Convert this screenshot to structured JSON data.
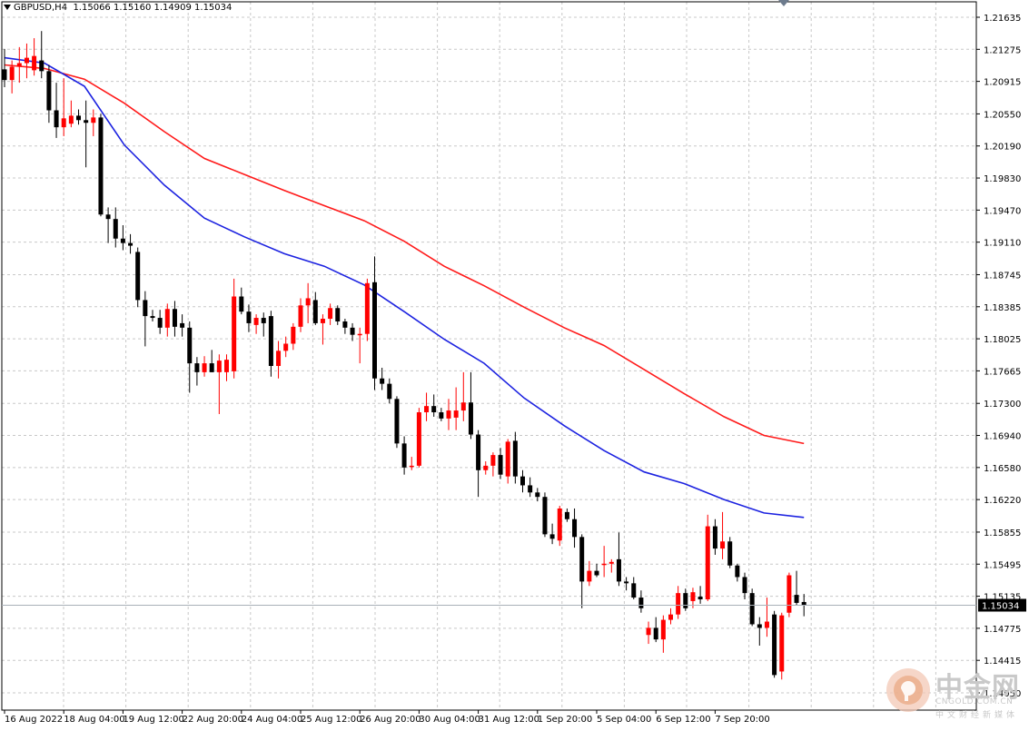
{
  "header": {
    "symbol": "GBPUSD,H4",
    "ohlc": "1.15066 1.15160 1.14909 1.15034"
  },
  "watermark": {
    "brand_cn": "中金网",
    "domain": "CNGOLD.COM.CN",
    "subtitle": "中文财经新媒体"
  },
  "colors": {
    "bull": "#ff0000",
    "bear": "#000000",
    "ma_red": "#ff1a1a",
    "ma_blue": "#1c22e0",
    "grid": "#c8c8c8",
    "axis": "#000000",
    "current_price_bg": "#000000",
    "current_price_text": "#ffffff"
  },
  "chart_data": {
    "type": "candlestick",
    "title": "GBPUSD,H4",
    "ylim": [
      1.1405,
      1.217
    ],
    "y_ticks": [
      "1.21635",
      "1.21275",
      "1.20915",
      "1.20550",
      "1.20190",
      "1.19830",
      "1.19470",
      "1.19110",
      "1.18745",
      "1.18385",
      "1.18025",
      "1.17665",
      "1.17300",
      "1.16940",
      "1.16580",
      "1.16220",
      "1.15855",
      "1.15495",
      "1.15135",
      "1.14775",
      "1.14415",
      "1.14050"
    ],
    "current_price": "1.15034",
    "x_labels": [
      "16 Aug 2022",
      "18 Aug 04:00",
      "19 Aug 12:00",
      "22 Aug 20:00",
      "24 Aug 04:00",
      "25 Aug 12:00",
      "26 Aug 20:00",
      "30 Aug 04:00",
      "31 Aug 12:00",
      "1 Sep 20:00",
      "5 Sep 04:00",
      "6 Sep 12:00",
      "7 Sep 20:00"
    ],
    "x_label_index": [
      0,
      8,
      16,
      24,
      32,
      40,
      48,
      56,
      64,
      72,
      80,
      88,
      96
    ],
    "candles": [
      {
        "o": 1.2105,
        "h": 1.2128,
        "l": 1.2085,
        "c": 1.2093
      },
      {
        "o": 1.2093,
        "h": 1.2115,
        "l": 1.2078,
        "c": 1.2108
      },
      {
        "o": 1.2108,
        "h": 1.213,
        "l": 1.209,
        "c": 1.2112
      },
      {
        "o": 1.2112,
        "h": 1.2134,
        "l": 1.2095,
        "c": 1.2118
      },
      {
        "o": 1.2104,
        "h": 1.214,
        "l": 1.2098,
        "c": 1.212
      },
      {
        "o": 1.2115,
        "h": 1.2148,
        "l": 1.2095,
        "c": 1.2103
      },
      {
        "o": 1.2103,
        "h": 1.211,
        "l": 1.2045,
        "c": 1.2059
      },
      {
        "o": 1.2059,
        "h": 1.209,
        "l": 1.2028,
        "c": 1.204
      },
      {
        "o": 1.204,
        "h": 1.2095,
        "l": 1.203,
        "c": 1.205
      },
      {
        "o": 1.2044,
        "h": 1.207,
        "l": 1.204,
        "c": 1.2053
      },
      {
        "o": 1.2053,
        "h": 1.206,
        "l": 1.2043,
        "c": 1.2048
      },
      {
        "o": 1.2048,
        "h": 1.207,
        "l": 1.1995,
        "c": 1.2045
      },
      {
        "o": 1.2045,
        "h": 1.206,
        "l": 1.203,
        "c": 1.2051
      },
      {
        "o": 1.2051,
        "h": 1.2055,
        "l": 1.194,
        "c": 1.1942
      },
      {
        "o": 1.1942,
        "h": 1.195,
        "l": 1.191,
        "c": 1.1937
      },
      {
        "o": 1.1937,
        "h": 1.195,
        "l": 1.1905,
        "c": 1.1915
      },
      {
        "o": 1.1915,
        "h": 1.193,
        "l": 1.1902,
        "c": 1.191
      },
      {
        "o": 1.191,
        "h": 1.192,
        "l": 1.1898,
        "c": 1.1907
      },
      {
        "o": 1.19,
        "h": 1.1905,
        "l": 1.1838,
        "c": 1.1846
      },
      {
        "o": 1.1846,
        "h": 1.1856,
        "l": 1.1794,
        "c": 1.1828
      },
      {
        "o": 1.1828,
        "h": 1.1835,
        "l": 1.1822,
        "c": 1.1826
      },
      {
        "o": 1.1826,
        "h": 1.1835,
        "l": 1.1808,
        "c": 1.1815
      },
      {
        "o": 1.1815,
        "h": 1.1842,
        "l": 1.1805,
        "c": 1.1836
      },
      {
        "o": 1.1836,
        "h": 1.1845,
        "l": 1.1805,
        "c": 1.1816
      },
      {
        "o": 1.182,
        "h": 1.183,
        "l": 1.1805,
        "c": 1.1815
      },
      {
        "o": 1.1815,
        "h": 1.1822,
        "l": 1.1742,
        "c": 1.1775
      },
      {
        "o": 1.1775,
        "h": 1.1782,
        "l": 1.175,
        "c": 1.1765
      },
      {
        "o": 1.1765,
        "h": 1.1783,
        "l": 1.176,
        "c": 1.1775
      },
      {
        "o": 1.1775,
        "h": 1.179,
        "l": 1.1765,
        "c": 1.1765
      },
      {
        "o": 1.1765,
        "h": 1.1785,
        "l": 1.1718,
        "c": 1.1778
      },
      {
        "o": 1.1765,
        "h": 1.1785,
        "l": 1.1755,
        "c": 1.1779
      },
      {
        "o": 1.1766,
        "h": 1.187,
        "l": 1.1758,
        "c": 1.185
      },
      {
        "o": 1.185,
        "h": 1.186,
        "l": 1.183,
        "c": 1.1833
      },
      {
        "o": 1.1833,
        "h": 1.1841,
        "l": 1.181,
        "c": 1.182
      },
      {
        "o": 1.1818,
        "h": 1.183,
        "l": 1.1808,
        "c": 1.1826
      },
      {
        "o": 1.1826,
        "h": 1.1832,
        "l": 1.1805,
        "c": 1.182
      },
      {
        "o": 1.1828,
        "h": 1.1834,
        "l": 1.176,
        "c": 1.1772
      },
      {
        "o": 1.1772,
        "h": 1.18,
        "l": 1.1758,
        "c": 1.1789
      },
      {
        "o": 1.1789,
        "h": 1.1805,
        "l": 1.1782,
        "c": 1.1797
      },
      {
        "o": 1.1797,
        "h": 1.182,
        "l": 1.179,
        "c": 1.1816
      },
      {
        "o": 1.1816,
        "h": 1.1848,
        "l": 1.181,
        "c": 1.184
      },
      {
        "o": 1.184,
        "h": 1.1865,
        "l": 1.182,
        "c": 1.1848
      },
      {
        "o": 1.1846,
        "h": 1.1855,
        "l": 1.1818,
        "c": 1.182
      },
      {
        "o": 1.182,
        "h": 1.183,
        "l": 1.1796,
        "c": 1.1825
      },
      {
        "o": 1.1825,
        "h": 1.1842,
        "l": 1.1818,
        "c": 1.1837
      },
      {
        "o": 1.1837,
        "h": 1.184,
        "l": 1.1818,
        "c": 1.1822
      },
      {
        "o": 1.1822,
        "h": 1.1825,
        "l": 1.1808,
        "c": 1.1815
      },
      {
        "o": 1.1815,
        "h": 1.182,
        "l": 1.18,
        "c": 1.1807
      },
      {
        "o": 1.1807,
        "h": 1.1815,
        "l": 1.1775,
        "c": 1.1808
      },
      {
        "o": 1.1808,
        "h": 1.187,
        "l": 1.18,
        "c": 1.1865
      },
      {
        "o": 1.1866,
        "h": 1.1895,
        "l": 1.1745,
        "c": 1.1758
      },
      {
        "o": 1.1758,
        "h": 1.177,
        "l": 1.1745,
        "c": 1.1752
      },
      {
        "o": 1.1752,
        "h": 1.1758,
        "l": 1.173,
        "c": 1.1735
      },
      {
        "o": 1.1735,
        "h": 1.1738,
        "l": 1.168,
        "c": 1.1685
      },
      {
        "o": 1.1685,
        "h": 1.1693,
        "l": 1.165,
        "c": 1.1658
      },
      {
        "o": 1.166,
        "h": 1.167,
        "l": 1.1655,
        "c": 1.166
      },
      {
        "o": 1.166,
        "h": 1.1725,
        "l": 1.1658,
        "c": 1.172
      },
      {
        "o": 1.172,
        "h": 1.1742,
        "l": 1.171,
        "c": 1.1727
      },
      {
        "o": 1.1727,
        "h": 1.174,
        "l": 1.1715,
        "c": 1.172
      },
      {
        "o": 1.172,
        "h": 1.1725,
        "l": 1.171,
        "c": 1.1713
      },
      {
        "o": 1.1713,
        "h": 1.1735,
        "l": 1.17,
        "c": 1.1722
      },
      {
        "o": 1.1714,
        "h": 1.1748,
        "l": 1.17,
        "c": 1.1722
      },
      {
        "o": 1.1722,
        "h": 1.1765,
        "l": 1.171,
        "c": 1.1731
      },
      {
        "o": 1.1731,
        "h": 1.1765,
        "l": 1.169,
        "c": 1.1695
      },
      {
        "o": 1.1695,
        "h": 1.17,
        "l": 1.1625,
        "c": 1.1655
      },
      {
        "o": 1.1655,
        "h": 1.1665,
        "l": 1.165,
        "c": 1.166
      },
      {
        "o": 1.166,
        "h": 1.1675,
        "l": 1.1648,
        "c": 1.1672
      },
      {
        "o": 1.1672,
        "h": 1.168,
        "l": 1.1645,
        "c": 1.165
      },
      {
        "o": 1.1648,
        "h": 1.169,
        "l": 1.164,
        "c": 1.1687
      },
      {
        "o": 1.1688,
        "h": 1.1698,
        "l": 1.164,
        "c": 1.1648
      },
      {
        "o": 1.1648,
        "h": 1.1655,
        "l": 1.163,
        "c": 1.1638
      },
      {
        "o": 1.1638,
        "h": 1.1647,
        "l": 1.1625,
        "c": 1.163
      },
      {
        "o": 1.163,
        "h": 1.1635,
        "l": 1.162,
        "c": 1.1625
      },
      {
        "o": 1.1625,
        "h": 1.163,
        "l": 1.158,
        "c": 1.1583
      },
      {
        "o": 1.1583,
        "h": 1.1595,
        "l": 1.1572,
        "c": 1.1578
      },
      {
        "o": 1.1576,
        "h": 1.1615,
        "l": 1.157,
        "c": 1.1612
      },
      {
        "o": 1.1608,
        "h": 1.1612,
        "l": 1.1597,
        "c": 1.16
      },
      {
        "o": 1.16,
        "h": 1.1612,
        "l": 1.1568,
        "c": 1.158
      },
      {
        "o": 1.158,
        "h": 1.1583,
        "l": 1.15,
        "c": 1.153
      },
      {
        "o": 1.153,
        "h": 1.1553,
        "l": 1.1525,
        "c": 1.1542
      },
      {
        "o": 1.1542,
        "h": 1.155,
        "l": 1.1535,
        "c": 1.1537
      },
      {
        "o": 1.155,
        "h": 1.157,
        "l": 1.1535,
        "c": 1.155
      },
      {
        "o": 1.155,
        "h": 1.1555,
        "l": 1.154,
        "c": 1.1552
      },
      {
        "o": 1.1555,
        "h": 1.1585,
        "l": 1.1525,
        "c": 1.153
      },
      {
        "o": 1.153,
        "h": 1.1535,
        "l": 1.152,
        "c": 1.1528
      },
      {
        "o": 1.1528,
        "h": 1.1535,
        "l": 1.151,
        "c": 1.1512
      },
      {
        "o": 1.1512,
        "h": 1.152,
        "l": 1.1495,
        "c": 1.15
      },
      {
        "o": 1.147,
        "h": 1.1485,
        "l": 1.146,
        "c": 1.1478
      },
      {
        "o": 1.1478,
        "h": 1.149,
        "l": 1.1462,
        "c": 1.1465
      },
      {
        "o": 1.1465,
        "h": 1.1492,
        "l": 1.145,
        "c": 1.1487
      },
      {
        "o": 1.1487,
        "h": 1.15,
        "l": 1.1482,
        "c": 1.1493
      },
      {
        "o": 1.1493,
        "h": 1.1525,
        "l": 1.1488,
        "c": 1.1517
      },
      {
        "o": 1.1517,
        "h": 1.1522,
        "l": 1.1497,
        "c": 1.15
      },
      {
        "o": 1.1508,
        "h": 1.1523,
        "l": 1.15,
        "c": 1.1518
      },
      {
        "o": 1.1513,
        "h": 1.1525,
        "l": 1.1505,
        "c": 1.151
      },
      {
        "o": 1.151,
        "h": 1.1605,
        "l": 1.1508,
        "c": 1.1592
      },
      {
        "o": 1.1592,
        "h": 1.16,
        "l": 1.156,
        "c": 1.1567
      },
      {
        "o": 1.1567,
        "h": 1.1608,
        "l": 1.1555,
        "c": 1.1575
      },
      {
        "o": 1.1575,
        "h": 1.158,
        "l": 1.1545,
        "c": 1.1548
      },
      {
        "o": 1.1548,
        "h": 1.155,
        "l": 1.153,
        "c": 1.1535
      },
      {
        "o": 1.1535,
        "h": 1.154,
        "l": 1.151,
        "c": 1.1517
      },
      {
        "o": 1.1517,
        "h": 1.1522,
        "l": 1.148,
        "c": 1.1482
      },
      {
        "o": 1.1482,
        "h": 1.149,
        "l": 1.1458,
        "c": 1.1478
      },
      {
        "o": 1.1478,
        "h": 1.1512,
        "l": 1.1468,
        "c": 1.1485
      },
      {
        "o": 1.1493,
        "h": 1.1497,
        "l": 1.1422,
        "c": 1.1425
      },
      {
        "o": 1.1429,
        "h": 1.1495,
        "l": 1.142,
        "c": 1.1492
      },
      {
        "o": 1.1495,
        "h": 1.154,
        "l": 1.149,
        "c": 1.1537
      },
      {
        "o": 1.1515,
        "h": 1.1542,
        "l": 1.1503,
        "c": 1.1506
      },
      {
        "o": 1.1507,
        "h": 1.1516,
        "l": 1.1491,
        "c": 1.1503
      }
    ],
    "ma_red": [
      1.211,
      1.2106,
      1.2094,
      1.2067,
      1.2035,
      1.2005,
      1.1987,
      1.1969,
      1.1952,
      1.1935,
      1.1912,
      1.1884,
      1.1862,
      1.1838,
      1.1815,
      1.1795,
      1.1768,
      1.1741,
      1.1715,
      1.1694,
      1.1685
    ],
    "ma_blue": [
      1.2118,
      1.2112,
      1.2086,
      1.202,
      1.1975,
      1.1938,
      1.1917,
      1.1898,
      1.1884,
      1.1863,
      1.1833,
      1.1802,
      1.1775,
      1.1736,
      1.1705,
      1.1677,
      1.1653,
      1.164,
      1.1622,
      1.1607,
      1.1602
    ]
  }
}
